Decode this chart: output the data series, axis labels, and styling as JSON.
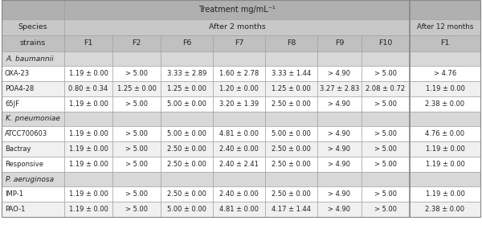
{
  "col_headers": [
    "strains",
    "F1",
    "F2",
    "F6",
    "F7",
    "F8",
    "F9",
    "F10",
    "F1"
  ],
  "groups": [
    {
      "name": "A. baumannii",
      "rows": [
        [
          "OXA-23",
          "1.19 ± 0.00",
          "> 5.00",
          "3.33 ± 2.89",
          "1.60 ± 2.78",
          "3.33 ± 1.44",
          "> 4.90",
          "> 5.00",
          "> 4.76"
        ],
        [
          "POA4-28",
          "0.80 ± 0.34",
          "1.25 ± 0.00",
          "1.25 ± 0.00",
          "1.20 ± 0.00",
          "1.25 ± 0.00",
          "3.27 ± 2.83",
          "2.08 ± 0.72",
          "1.19 ± 0.00"
        ],
        [
          "65JF",
          "1.19 ± 0.00",
          "> 5.00",
          "5.00 ± 0.00",
          "3.20 ± 1.39",
          "2.50 ± 0.00",
          "> 4.90",
          "> 5.00",
          "2.38 ± 0.00"
        ]
      ]
    },
    {
      "name": "K. pneumoniae",
      "rows": [
        [
          "ATCC700603",
          "1.19 ± 0.00",
          "> 5.00",
          "5.00 ± 0.00",
          "4.81 ± 0.00",
          "5.00 ± 0.00",
          "> 4.90",
          "> 5.00",
          "4.76 ± 0.00"
        ],
        [
          "Bactray",
          "1.19 ± 0.00",
          "> 5.00",
          "2.50 ± 0.00",
          "2.40 ± 0.00",
          "2.50 ± 0.00",
          "> 4.90",
          "> 5.00",
          "1.19 ± 0.00"
        ],
        [
          "Responsive",
          "1.19 ± 0.00",
          "> 5.00",
          "2.50 ± 0.00",
          "2.40 ± 2.41",
          "2.50 ± 0.00",
          "> 4.90",
          "> 5.00",
          "1.19 ± 0.00"
        ]
      ]
    },
    {
      "name": "P. aeruginosa",
      "rows": [
        [
          "IMP-1",
          "1.19 ± 0.00",
          "> 5.00",
          "2.50 ± 0.00",
          "2.40 ± 0.00",
          "2.50 ± 0.00",
          "> 4.90",
          "> 5.00",
          "1.19 ± 0.00"
        ],
        [
          "PAO-1",
          "1.19 ± 0.00",
          "> 5.00",
          "5.00 ± 0.00",
          "4.81 ± 0.00",
          "4.17 ± 1.44",
          "> 4.90",
          "> 5.00",
          "2.38 ± 0.00"
        ]
      ]
    }
  ],
  "bg_header": "#b0b0b0",
  "bg_subheader": "#c8c8c8",
  "bg_colheader": "#c0c0c0",
  "bg_group": "#d8d8d8",
  "bg_white": "#ffffff",
  "bg_data_alt": "#f0f0f0",
  "text_color": "#222222",
  "fs_title": 7.0,
  "fs_header": 6.8,
  "fs_colhdr": 6.8,
  "fs_group": 6.5,
  "fs_cell": 6.0,
  "fs_strain": 6.0
}
